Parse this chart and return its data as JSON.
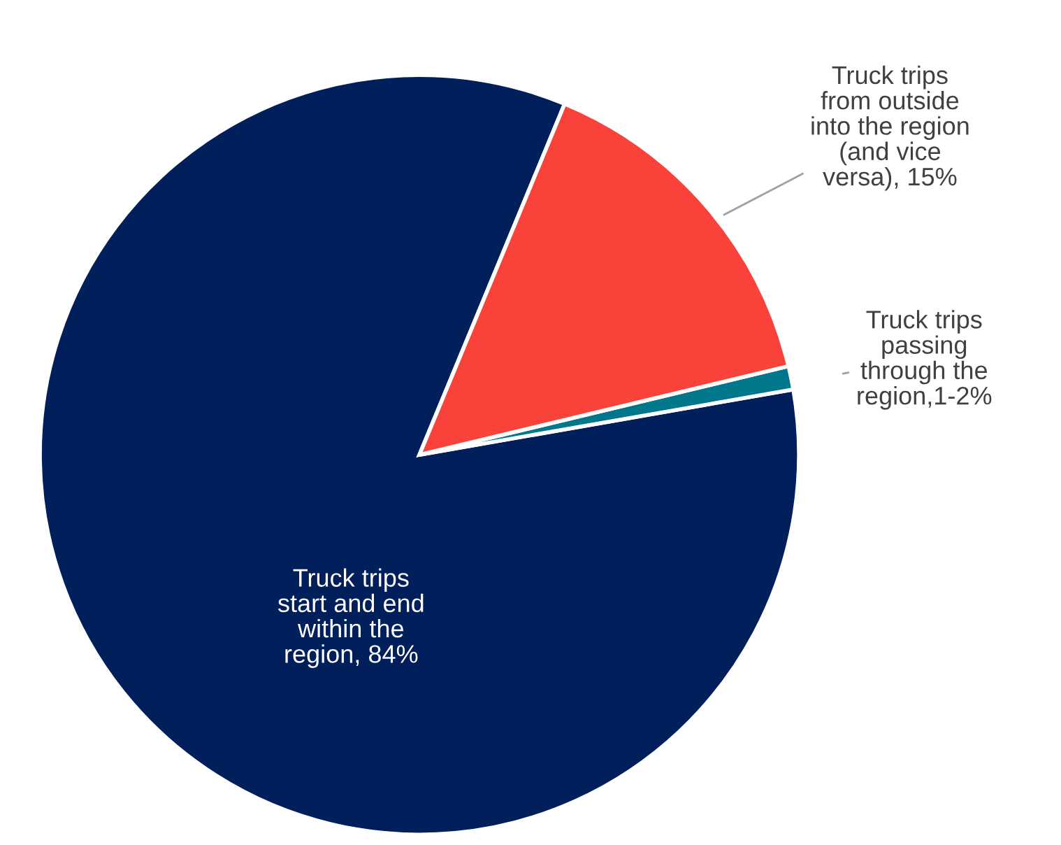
{
  "chart_data": {
    "type": "pie",
    "categories": [
      "Truck trips\nstart and end\nwithin the\nregion, 84%",
      "Truck trips\npassing\nthrough the\nregion,1-2%",
      "Truck trips\nfrom outside\ninto the region\n(and vice\nversa), 15%"
    ],
    "values": [
      84,
      1,
      15
    ],
    "colors": [
      "#001f5b",
      "#00778b",
      "#f9423a"
    ],
    "legend": false
  }
}
